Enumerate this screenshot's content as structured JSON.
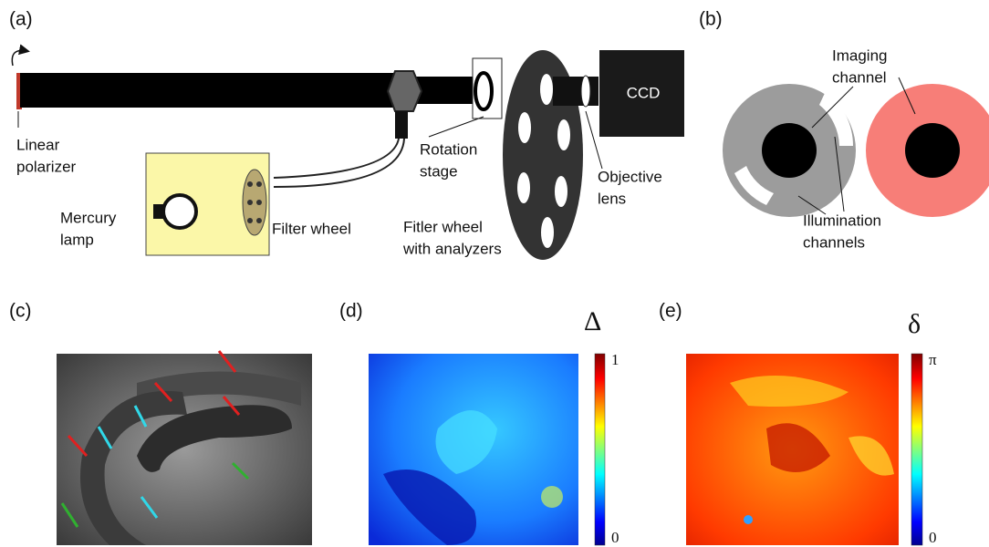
{
  "panel_a": {
    "tag": "(a)",
    "labels": [
      {
        "lines": [
          "Linear",
          "polarizer"
        ]
      },
      {
        "lines": [
          "Mercury",
          "lamp"
        ]
      },
      {
        "lines": [
          "Filter wheel"
        ]
      },
      {
        "lines": [
          "Rotation",
          "stage"
        ]
      },
      {
        "lines": [
          "Fitler wheel",
          "with analyzers"
        ]
      },
      {
        "lines": [
          "Objective",
          "lens"
        ]
      },
      {
        "lines": [
          "CCD"
        ]
      }
    ]
  },
  "panel_b": {
    "tag": "(b)",
    "labels": [
      {
        "lines": [
          "Imaging",
          "channel"
        ]
      },
      {
        "lines": [
          "Illumination",
          "channels"
        ]
      }
    ]
  },
  "panel_c": {
    "tag": "(c)"
  },
  "panel_d": {
    "tag": "(d)",
    "symbol": "Δ",
    "colorbar_top": "1",
    "colorbar_bottom": "0"
  },
  "panel_e": {
    "tag": "(e)",
    "symbol": "δ",
    "colorbar_top": "π",
    "colorbar_bottom": "0"
  }
}
